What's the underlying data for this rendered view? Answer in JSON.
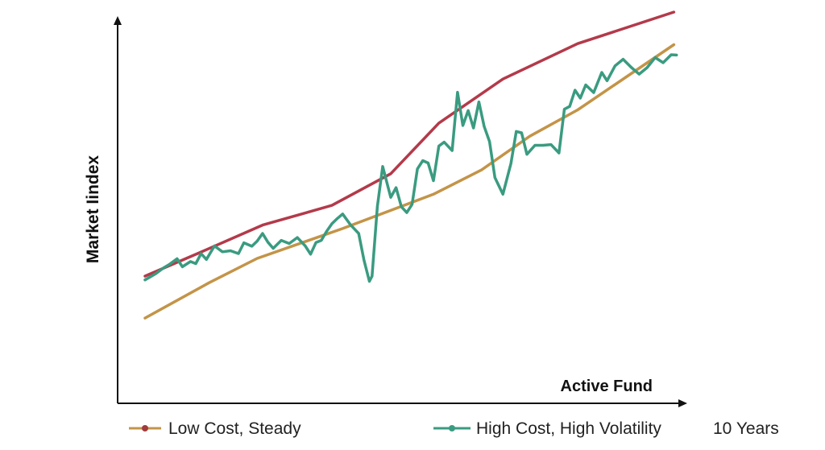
{
  "chart_data": {
    "type": "line",
    "title": "",
    "ylabel": "Market Iindex",
    "xlabel": "Active Fund",
    "note": "10 Years",
    "legend_placement": "bottom",
    "grid": false,
    "xlim": [
      0,
      10
    ],
    "ylim": [
      0,
      100
    ],
    "legend": [
      {
        "name": "Low Cost, Steady",
        "line_color": "#c39448",
        "marker_color": "#a23b3b"
      },
      {
        "name": "High Cost, High Volatility",
        "line_color": "#3a9b80",
        "marker_color": "#3a9b80"
      }
    ],
    "series": [
      {
        "color": "#b33a4a",
        "points": [
          [
            0.0,
            23.9
          ],
          [
            1.0,
            30.5
          ],
          [
            2.2,
            38.6
          ],
          [
            3.5,
            44.3
          ],
          [
            4.6,
            53.4
          ],
          [
            5.5,
            68.0
          ],
          [
            6.7,
            80.7
          ],
          [
            8.1,
            90.9
          ],
          [
            9.9,
            100.0
          ]
        ]
      },
      {
        "color": "#c39448",
        "points": [
          [
            0.0,
            11.8
          ],
          [
            1.2,
            22.0
          ],
          [
            2.1,
            29.0
          ],
          [
            3.7,
            37.6
          ],
          [
            5.4,
            47.5
          ],
          [
            6.3,
            54.5
          ],
          [
            7.2,
            64.2
          ],
          [
            8.1,
            71.8
          ],
          [
            9.0,
            81.2
          ],
          [
            9.9,
            90.6
          ]
        ]
      },
      {
        "color": "#3a9b80",
        "points": [
          [
            0.0,
            22.8
          ],
          [
            0.2,
            24.6
          ],
          [
            0.35,
            26.3
          ],
          [
            0.45,
            27.2
          ],
          [
            0.6,
            28.9
          ],
          [
            0.7,
            26.6
          ],
          [
            0.85,
            28.1
          ],
          [
            0.95,
            27.5
          ],
          [
            1.05,
            30.4
          ],
          [
            1.15,
            28.7
          ],
          [
            1.3,
            32.6
          ],
          [
            1.45,
            30.9
          ],
          [
            1.6,
            31.2
          ],
          [
            1.75,
            30.4
          ],
          [
            1.85,
            33.5
          ],
          [
            2.0,
            32.5
          ],
          [
            2.1,
            34.0
          ],
          [
            2.2,
            36.2
          ],
          [
            2.3,
            33.7
          ],
          [
            2.4,
            31.9
          ],
          [
            2.55,
            34.2
          ],
          [
            2.7,
            33.3
          ],
          [
            2.85,
            35.0
          ],
          [
            3.0,
            32.6
          ],
          [
            3.1,
            30.2
          ],
          [
            3.2,
            33.6
          ],
          [
            3.3,
            34.2
          ],
          [
            3.4,
            36.8
          ],
          [
            3.5,
            39.0
          ],
          [
            3.6,
            40.5
          ],
          [
            3.7,
            41.8
          ],
          [
            3.85,
            38.6
          ],
          [
            4.0,
            36.2
          ],
          [
            4.1,
            28.5
          ],
          [
            4.2,
            22.4
          ],
          [
            4.25,
            23.9
          ],
          [
            4.35,
            44.0
          ],
          [
            4.45,
            55.5
          ],
          [
            4.6,
            46.6
          ],
          [
            4.7,
            49.4
          ],
          [
            4.8,
            43.9
          ],
          [
            4.9,
            42.2
          ],
          [
            5.0,
            44.6
          ],
          [
            5.1,
            54.8
          ],
          [
            5.2,
            57.2
          ],
          [
            5.3,
            56.5
          ],
          [
            5.4,
            51.4
          ],
          [
            5.5,
            61.4
          ],
          [
            5.6,
            62.5
          ],
          [
            5.75,
            60.1
          ],
          [
            5.85,
            76.9
          ],
          [
            5.95,
            67.3
          ],
          [
            6.05,
            71.6
          ],
          [
            6.15,
            66.6
          ],
          [
            6.25,
            74.1
          ],
          [
            6.35,
            67.0
          ],
          [
            6.45,
            62.7
          ],
          [
            6.55,
            52.3
          ],
          [
            6.7,
            47.5
          ],
          [
            6.85,
            56.4
          ],
          [
            6.95,
            65.6
          ],
          [
            7.05,
            65.2
          ],
          [
            7.15,
            59.0
          ],
          [
            7.3,
            61.6
          ],
          [
            7.45,
            61.6
          ],
          [
            7.6,
            61.8
          ],
          [
            7.75,
            59.4
          ],
          [
            7.85,
            72.0
          ],
          [
            7.95,
            72.8
          ],
          [
            8.05,
            77.5
          ],
          [
            8.15,
            75.2
          ],
          [
            8.25,
            79.0
          ],
          [
            8.4,
            76.8
          ],
          [
            8.55,
            82.6
          ],
          [
            8.65,
            80.2
          ],
          [
            8.8,
            84.5
          ],
          [
            8.95,
            86.4
          ],
          [
            9.1,
            84.1
          ],
          [
            9.25,
            82.1
          ],
          [
            9.4,
            84.0
          ],
          [
            9.55,
            86.9
          ],
          [
            9.7,
            85.4
          ],
          [
            9.85,
            87.7
          ],
          [
            9.95,
            87.6
          ]
        ]
      }
    ]
  }
}
